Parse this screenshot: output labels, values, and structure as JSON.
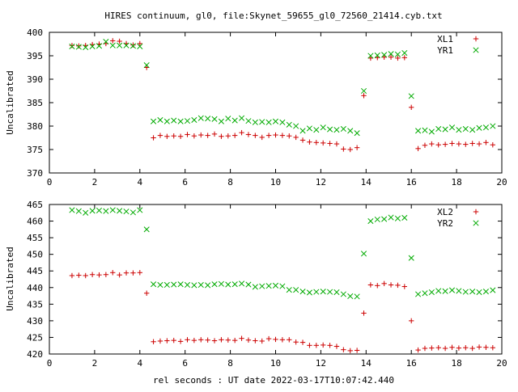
{
  "title": "HIRES continuum, gl0, file:Skynet_59655_gl0_72560_21414.cyb.txt",
  "chart_data": [
    {
      "type": "scatter",
      "ylabel": "Uncalibrated",
      "xlabel": "",
      "xlim": [
        0,
        20
      ],
      "ylim": [
        370,
        400
      ],
      "x_ticks": [
        0,
        2,
        4,
        6,
        8,
        10,
        12,
        14,
        16,
        18,
        20
      ],
      "y_ticks": [
        370,
        375,
        380,
        385,
        390,
        395,
        400
      ],
      "legend_position": "top-right",
      "series": [
        {
          "name": "XL1",
          "marker": "plus",
          "color": "#cc0000",
          "x": [
            1.0,
            1.3,
            1.6,
            1.9,
            2.2,
            2.5,
            2.8,
            3.1,
            3.4,
            3.7,
            4.0,
            4.3,
            4.6,
            4.9,
            5.2,
            5.5,
            5.8,
            6.1,
            6.4,
            6.7,
            7.0,
            7.3,
            7.6,
            7.9,
            8.2,
            8.5,
            8.8,
            9.1,
            9.4,
            9.7,
            10.0,
            10.3,
            10.6,
            10.9,
            11.2,
            11.5,
            11.8,
            12.1,
            12.4,
            12.7,
            13.0,
            13.3,
            13.6,
            13.9,
            14.2,
            14.5,
            14.8,
            15.1,
            15.4,
            15.7,
            16.0,
            16.3,
            16.6,
            16.9,
            17.2,
            17.5,
            17.8,
            18.1,
            18.4,
            18.7,
            19.0,
            19.3,
            19.6
          ],
          "y": [
            397.2,
            397.1,
            397.2,
            397.4,
            397.5,
            397.6,
            398.2,
            398.1,
            397.6,
            397.3,
            397.6,
            392.5,
            377.5,
            378.0,
            377.8,
            377.9,
            377.8,
            378.2,
            377.9,
            378.1,
            378.0,
            378.3,
            377.8,
            377.9,
            378.0,
            378.6,
            378.2,
            378.0,
            377.6,
            378.0,
            378.1,
            378.0,
            377.9,
            377.6,
            377.0,
            376.6,
            376.5,
            376.4,
            376.3,
            376.2,
            375.1,
            375.0,
            375.4,
            386.5,
            394.5,
            394.6,
            394.7,
            394.7,
            394.5,
            394.6,
            384.0,
            375.2,
            375.9,
            376.2,
            376.0,
            376.1,
            376.3,
            376.2,
            376.1,
            376.3,
            376.2,
            376.5,
            376.0
          ]
        },
        {
          "name": "YR1",
          "marker": "cross",
          "color": "#00aa00",
          "x": [
            1.0,
            1.3,
            1.6,
            1.9,
            2.2,
            2.5,
            2.8,
            3.1,
            3.4,
            3.7,
            4.0,
            4.3,
            4.6,
            4.9,
            5.2,
            5.5,
            5.8,
            6.1,
            6.4,
            6.7,
            7.0,
            7.3,
            7.6,
            7.9,
            8.2,
            8.5,
            8.8,
            9.1,
            9.4,
            9.7,
            10.0,
            10.3,
            10.6,
            10.9,
            11.2,
            11.5,
            11.8,
            12.1,
            12.4,
            12.7,
            13.0,
            13.3,
            13.6,
            13.9,
            14.2,
            14.5,
            14.8,
            15.1,
            15.4,
            15.7,
            16.0,
            16.3,
            16.6,
            16.9,
            17.2,
            17.5,
            17.8,
            18.1,
            18.4,
            18.7,
            19.0,
            19.3,
            19.6
          ],
          "y": [
            397.0,
            396.9,
            396.8,
            397.0,
            397.1,
            398.0,
            397.2,
            397.2,
            397.2,
            397.1,
            397.0,
            393.0,
            381.0,
            381.3,
            381.0,
            381.2,
            381.0,
            381.1,
            381.3,
            381.7,
            381.6,
            381.5,
            381.0,
            381.6,
            381.2,
            381.7,
            381.1,
            380.8,
            380.9,
            380.8,
            381.0,
            380.8,
            380.3,
            380.0,
            379.0,
            379.5,
            379.2,
            379.7,
            379.3,
            379.2,
            379.4,
            379.0,
            378.5,
            387.5,
            395.0,
            395.1,
            395.2,
            395.4,
            395.3,
            395.6,
            386.4,
            379.0,
            379.1,
            378.8,
            379.4,
            379.3,
            379.7,
            379.2,
            379.4,
            379.2,
            379.6,
            379.7,
            380.0
          ]
        }
      ]
    },
    {
      "type": "scatter",
      "ylabel": "Uncalibrated",
      "xlabel": "rel seconds : UT date 2022-03-17T10:07:42.440",
      "xlim": [
        0,
        20
      ],
      "ylim": [
        420,
        465
      ],
      "x_ticks": [
        0,
        2,
        4,
        6,
        8,
        10,
        12,
        14,
        16,
        18,
        20
      ],
      "y_ticks": [
        420,
        425,
        430,
        435,
        440,
        445,
        450,
        455,
        460,
        465
      ],
      "legend_position": "top-right",
      "series": [
        {
          "name": "XL2",
          "marker": "plus",
          "color": "#cc0000",
          "x": [
            1.0,
            1.3,
            1.6,
            1.9,
            2.2,
            2.5,
            2.8,
            3.1,
            3.4,
            3.7,
            4.0,
            4.3,
            4.6,
            4.9,
            5.2,
            5.5,
            5.8,
            6.1,
            6.4,
            6.7,
            7.0,
            7.3,
            7.6,
            7.9,
            8.2,
            8.5,
            8.8,
            9.1,
            9.4,
            9.7,
            10.0,
            10.3,
            10.6,
            10.9,
            11.2,
            11.5,
            11.8,
            12.1,
            12.4,
            12.7,
            13.0,
            13.3,
            13.6,
            13.9,
            14.2,
            14.5,
            14.8,
            15.1,
            15.4,
            15.7,
            16.0,
            16.3,
            16.6,
            16.9,
            17.2,
            17.5,
            17.8,
            18.1,
            18.4,
            18.7,
            19.0,
            19.3,
            19.6
          ],
          "y": [
            443.6,
            443.7,
            443.6,
            443.9,
            443.8,
            443.9,
            444.5,
            443.8,
            444.4,
            444.4,
            444.5,
            438.3,
            423.7,
            423.9,
            424.0,
            424.1,
            423.8,
            424.3,
            424.1,
            424.3,
            424.2,
            424.0,
            424.3,
            424.2,
            424.1,
            424.7,
            424.2,
            424.0,
            423.9,
            424.6,
            424.4,
            424.3,
            424.3,
            423.6,
            423.5,
            422.6,
            422.6,
            422.7,
            422.6,
            422.3,
            421.3,
            421.0,
            421.1,
            432.3,
            440.8,
            440.6,
            441.2,
            440.8,
            440.7,
            440.3,
            430.0,
            421.2,
            421.7,
            421.8,
            421.9,
            421.7,
            422.0,
            421.8,
            421.9,
            421.7,
            422.1,
            422.0,
            421.9
          ]
        },
        {
          "name": "YR2",
          "marker": "cross",
          "color": "#00aa00",
          "x": [
            1.0,
            1.3,
            1.6,
            1.9,
            2.2,
            2.5,
            2.8,
            3.1,
            3.4,
            3.7,
            4.0,
            4.3,
            4.6,
            4.9,
            5.2,
            5.5,
            5.8,
            6.1,
            6.4,
            6.7,
            7.0,
            7.3,
            7.6,
            7.9,
            8.2,
            8.5,
            8.8,
            9.1,
            9.4,
            9.7,
            10.0,
            10.3,
            10.6,
            10.9,
            11.2,
            11.5,
            11.8,
            12.1,
            12.4,
            12.7,
            13.0,
            13.3,
            13.6,
            13.9,
            14.2,
            14.5,
            14.8,
            15.1,
            15.4,
            15.7,
            16.0,
            16.3,
            16.6,
            16.9,
            17.2,
            17.5,
            17.8,
            18.1,
            18.4,
            18.7,
            19.0,
            19.3,
            19.6
          ],
          "y": [
            463.3,
            463.0,
            462.5,
            463.1,
            463.2,
            463.0,
            463.3,
            463.1,
            462.9,
            462.6,
            463.3,
            457.5,
            441.0,
            440.8,
            440.8,
            440.9,
            441.0,
            440.8,
            440.7,
            440.8,
            440.7,
            441.0,
            441.1,
            440.9,
            441.0,
            441.2,
            440.9,
            440.2,
            440.4,
            440.5,
            440.6,
            440.4,
            439.3,
            439.3,
            438.8,
            438.5,
            438.7,
            438.8,
            438.7,
            438.6,
            438.0,
            437.4,
            437.3,
            450.2,
            460.0,
            460.5,
            460.6,
            461.1,
            460.8,
            461.0,
            448.9,
            438.0,
            438.3,
            438.6,
            439.0,
            438.9,
            439.2,
            439.0,
            438.7,
            438.8,
            438.6,
            438.8,
            439.2
          ]
        }
      ]
    }
  ]
}
